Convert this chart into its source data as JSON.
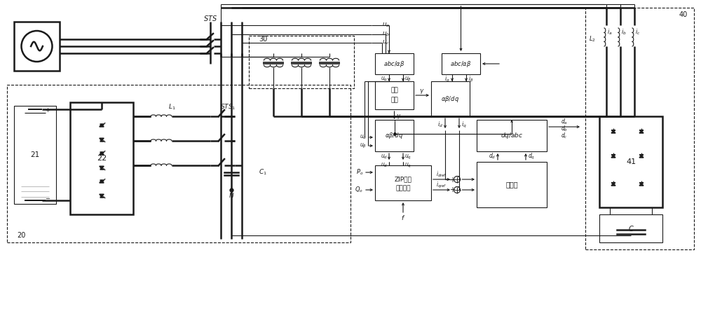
{
  "fw": 10.0,
  "fh": 4.41,
  "dpi": 100,
  "bg": "#ffffff",
  "lc": "#1a1a1a",
  "lw": 0.8,
  "lw2": 1.8,
  "coord": {
    "xlim": [
      0,
      100
    ],
    "ylim": [
      0,
      44.1
    ]
  }
}
